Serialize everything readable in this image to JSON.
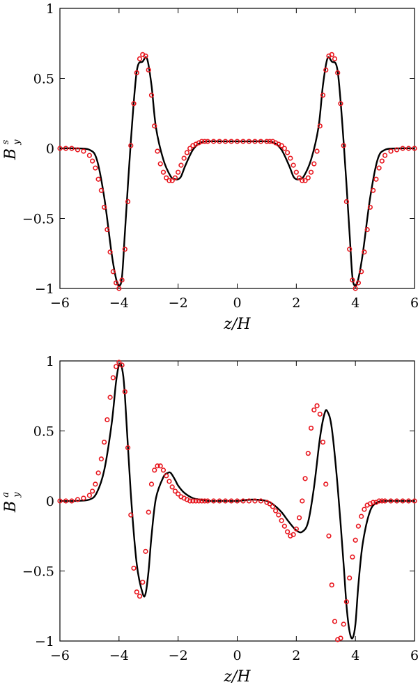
{
  "chart_data": [
    {
      "type": "line",
      "panel": "top",
      "xlabel": "z/H",
      "ylabel_base": "B",
      "ylabel_sub": "y",
      "ylabel_sup": "s",
      "xlim": [
        -6,
        6
      ],
      "ylim": [
        -1,
        1
      ],
      "xticks": [
        -6,
        -4,
        -2,
        0,
        2,
        4,
        6
      ],
      "yticks": [
        -1,
        -0.5,
        0,
        0.5,
        1
      ],
      "xtick_labels": [
        "−6",
        "−4",
        "−2",
        "0",
        "2",
        "4",
        "6"
      ],
      "ytick_labels": [
        "−1",
        "−0.5",
        "0",
        "0.5",
        "1"
      ],
      "grid": false,
      "series": [
        {
          "style": "line",
          "color": "#000000",
          "x": [
            -6,
            -5.5,
            -5.0,
            -4.75,
            -4.5,
            -4.25,
            -4.1,
            -4.0,
            -3.9,
            -3.8,
            -3.6,
            -3.4,
            -3.2,
            -3.05,
            -2.9,
            -2.75,
            -2.5,
            -2.25,
            -2.1,
            -2.0,
            -1.9,
            -1.75,
            -1.5,
            -1.25,
            -1.0,
            -0.5,
            0,
            0.5,
            1.0,
            1.25,
            1.5,
            1.75,
            1.9,
            2.0,
            2.1,
            2.25,
            2.5,
            2.75,
            2.9,
            3.05,
            3.2,
            3.4,
            3.6,
            3.8,
            3.9,
            4.0,
            4.1,
            4.25,
            4.5,
            4.75,
            5.0,
            5.5,
            6
          ],
          "y": [
            0,
            0,
            -0.01,
            -0.08,
            -0.35,
            -0.75,
            -0.93,
            -0.98,
            -0.92,
            -0.6,
            0.05,
            0.55,
            0.62,
            0.64,
            0.45,
            0.15,
            -0.08,
            -0.2,
            -0.22,
            -0.22,
            -0.2,
            -0.12,
            -0.01,
            0.04,
            0.05,
            0.05,
            0.05,
            0.05,
            0.05,
            0.04,
            -0.01,
            -0.12,
            -0.2,
            -0.22,
            -0.22,
            -0.2,
            -0.08,
            0.15,
            0.45,
            0.64,
            0.62,
            0.55,
            0.05,
            -0.6,
            -0.92,
            -0.98,
            -0.93,
            -0.75,
            -0.35,
            -0.08,
            -0.01,
            0,
            0
          ]
        },
        {
          "style": "markers",
          "color": "#e8141c",
          "x": [
            -6,
            -5.8,
            -5.6,
            -5.4,
            -5.2,
            -5.0,
            -4.9,
            -4.8,
            -4.7,
            -4.6,
            -4.5,
            -4.4,
            -4.3,
            -4.2,
            -4.1,
            -4.0,
            -3.9,
            -3.8,
            -3.7,
            -3.6,
            -3.5,
            -3.4,
            -3.3,
            -3.2,
            -3.1,
            -3.0,
            -2.9,
            -2.8,
            -2.7,
            -2.6,
            -2.5,
            -2.4,
            -2.3,
            -2.2,
            -2.1,
            -2.0,
            -1.9,
            -1.8,
            -1.7,
            -1.6,
            -1.5,
            -1.4,
            -1.3,
            -1.2,
            -1.1,
            -1.0,
            -0.8,
            -0.6,
            -0.4,
            -0.2,
            0,
            0.2,
            0.4,
            0.6,
            0.8,
            1.0,
            1.1,
            1.2,
            1.3,
            1.4,
            1.5,
            1.6,
            1.7,
            1.8,
            1.9,
            2.0,
            2.1,
            2.2,
            2.3,
            2.4,
            2.5,
            2.6,
            2.7,
            2.8,
            2.9,
            3.0,
            3.1,
            3.2,
            3.3,
            3.4,
            3.5,
            3.6,
            3.7,
            3.8,
            3.9,
            4.0,
            4.1,
            4.2,
            4.3,
            4.4,
            4.5,
            4.6,
            4.7,
            4.8,
            4.9,
            5.0,
            5.2,
            5.4,
            5.6,
            5.8,
            6
          ],
          "y": [
            0,
            0,
            0,
            -0.01,
            -0.02,
            -0.05,
            -0.09,
            -0.14,
            -0.22,
            -0.3,
            -0.42,
            -0.58,
            -0.74,
            -0.88,
            -0.96,
            -1.0,
            -0.94,
            -0.72,
            -0.38,
            0.02,
            0.32,
            0.54,
            0.64,
            0.67,
            0.66,
            0.56,
            0.38,
            0.16,
            -0.02,
            -0.11,
            -0.17,
            -0.21,
            -0.23,
            -0.23,
            -0.21,
            -0.17,
            -0.12,
            -0.07,
            -0.03,
            0.0,
            0.02,
            0.03,
            0.04,
            0.05,
            0.05,
            0.05,
            0.05,
            0.05,
            0.05,
            0.05,
            0.05,
            0.05,
            0.05,
            0.05,
            0.05,
            0.05,
            0.05,
            0.05,
            0.04,
            0.03,
            0.02,
            0.0,
            -0.03,
            -0.07,
            -0.12,
            -0.17,
            -0.21,
            -0.23,
            -0.23,
            -0.21,
            -0.17,
            -0.11,
            -0.02,
            0.16,
            0.38,
            0.56,
            0.66,
            0.67,
            0.64,
            0.54,
            0.32,
            0.02,
            -0.38,
            -0.72,
            -0.94,
            -1.0,
            -0.96,
            -0.88,
            -0.74,
            -0.58,
            -0.42,
            -0.3,
            -0.22,
            -0.14,
            -0.09,
            -0.05,
            -0.02,
            -0.01,
            0,
            0,
            0
          ]
        }
      ]
    },
    {
      "type": "line",
      "panel": "bottom",
      "xlabel": "z/H",
      "ylabel_base": "B",
      "ylabel_sub": "y",
      "ylabel_sup": "a",
      "xlim": [
        -6,
        6
      ],
      "ylim": [
        -1,
        1
      ],
      "xticks": [
        -6,
        -4,
        -2,
        0,
        2,
        4,
        6
      ],
      "yticks": [
        -1,
        -0.5,
        0,
        0.5,
        1
      ],
      "xtick_labels": [
        "−6",
        "−4",
        "−2",
        "0",
        "2",
        "4",
        "6"
      ],
      "ytick_labels": [
        "−1",
        "−0.5",
        "0",
        "0.5",
        "1"
      ],
      "grid": false,
      "series": [
        {
          "style": "line",
          "color": "#000000",
          "x": [
            -6,
            -5.5,
            -5.0,
            -4.75,
            -4.5,
            -4.25,
            -4.1,
            -4.0,
            -3.9,
            -3.8,
            -3.6,
            -3.4,
            -3.2,
            -3.1,
            -3.0,
            -2.9,
            -2.75,
            -2.5,
            -2.35,
            -2.25,
            -2.1,
            -2.0,
            -1.8,
            -1.5,
            -1.25,
            -1.0,
            -0.5,
            0,
            0.5,
            1.0,
            1.25,
            1.5,
            1.75,
            2.0,
            2.2,
            2.4,
            2.6,
            2.8,
            2.95,
            3.05,
            3.2,
            3.4,
            3.6,
            3.7,
            3.8,
            3.9,
            4.0,
            4.1,
            4.25,
            4.5,
            4.75,
            5.0,
            5.5,
            6
          ],
          "y": [
            0,
            0,
            0.01,
            0.06,
            0.22,
            0.55,
            0.85,
            0.97,
            0.95,
            0.75,
            0.05,
            -0.45,
            -0.66,
            -0.66,
            -0.5,
            -0.25,
            0.02,
            0.17,
            0.2,
            0.2,
            0.15,
            0.11,
            0.06,
            0.02,
            0.01,
            0.0,
            0.0,
            0.0,
            0.01,
            0.0,
            -0.03,
            -0.08,
            -0.15,
            -0.21,
            -0.22,
            -0.15,
            0.1,
            0.45,
            0.62,
            0.64,
            0.52,
            0.1,
            -0.45,
            -0.75,
            -0.93,
            -0.98,
            -0.88,
            -0.6,
            -0.3,
            -0.07,
            -0.01,
            0,
            0,
            0
          ]
        },
        {
          "style": "markers",
          "color": "#e8141c",
          "x": [
            -6,
            -5.8,
            -5.6,
            -5.4,
            -5.2,
            -5.0,
            -4.9,
            -4.8,
            -4.7,
            -4.6,
            -4.5,
            -4.4,
            -4.3,
            -4.2,
            -4.1,
            -4.0,
            -3.9,
            -3.8,
            -3.7,
            -3.6,
            -3.5,
            -3.4,
            -3.3,
            -3.2,
            -3.1,
            -3.0,
            -2.9,
            -2.8,
            -2.7,
            -2.6,
            -2.5,
            -2.4,
            -2.3,
            -2.2,
            -2.1,
            -2.0,
            -1.9,
            -1.8,
            -1.7,
            -1.6,
            -1.5,
            -1.4,
            -1.3,
            -1.2,
            -1.1,
            -1.0,
            -0.8,
            -0.6,
            -0.4,
            -0.2,
            0,
            0.2,
            0.4,
            0.6,
            0.8,
            1.0,
            1.1,
            1.2,
            1.3,
            1.4,
            1.5,
            1.6,
            1.7,
            1.8,
            1.9,
            2.0,
            2.1,
            2.2,
            2.3,
            2.4,
            2.5,
            2.6,
            2.7,
            2.8,
            2.9,
            3.0,
            3.1,
            3.2,
            3.3,
            3.4,
            3.5,
            3.6,
            3.7,
            3.8,
            3.9,
            4.0,
            4.1,
            4.2,
            4.3,
            4.4,
            4.5,
            4.6,
            4.7,
            4.8,
            4.9,
            5.0,
            5.2,
            5.4,
            5.6,
            5.8,
            6
          ],
          "y": [
            0,
            0,
            0,
            0.01,
            0.02,
            0.04,
            0.07,
            0.12,
            0.2,
            0.3,
            0.42,
            0.58,
            0.74,
            0.88,
            0.96,
            0.99,
            0.97,
            0.78,
            0.38,
            -0.1,
            -0.48,
            -0.65,
            -0.68,
            -0.58,
            -0.36,
            -0.08,
            0.12,
            0.22,
            0.25,
            0.25,
            0.22,
            0.18,
            0.14,
            0.1,
            0.07,
            0.05,
            0.03,
            0.02,
            0.01,
            0.0,
            0.0,
            0.0,
            0.0,
            0.0,
            0.0,
            0.0,
            0.0,
            0.0,
            0.0,
            0.0,
            0.0,
            0.0,
            0.0,
            0.0,
            0.0,
            -0.01,
            -0.02,
            -0.04,
            -0.07,
            -0.1,
            -0.14,
            -0.18,
            -0.22,
            -0.25,
            -0.24,
            -0.2,
            -0.12,
            0.0,
            0.16,
            0.34,
            0.52,
            0.65,
            0.68,
            0.62,
            0.42,
            0.12,
            -0.25,
            -0.6,
            -0.86,
            -0.99,
            -0.98,
            -0.88,
            -0.72,
            -0.55,
            -0.4,
            -0.28,
            -0.18,
            -0.11,
            -0.06,
            -0.03,
            -0.02,
            -0.01,
            -0.01,
            0,
            0,
            0,
            0,
            0,
            0,
            0,
            0
          ]
        }
      ]
    }
  ]
}
